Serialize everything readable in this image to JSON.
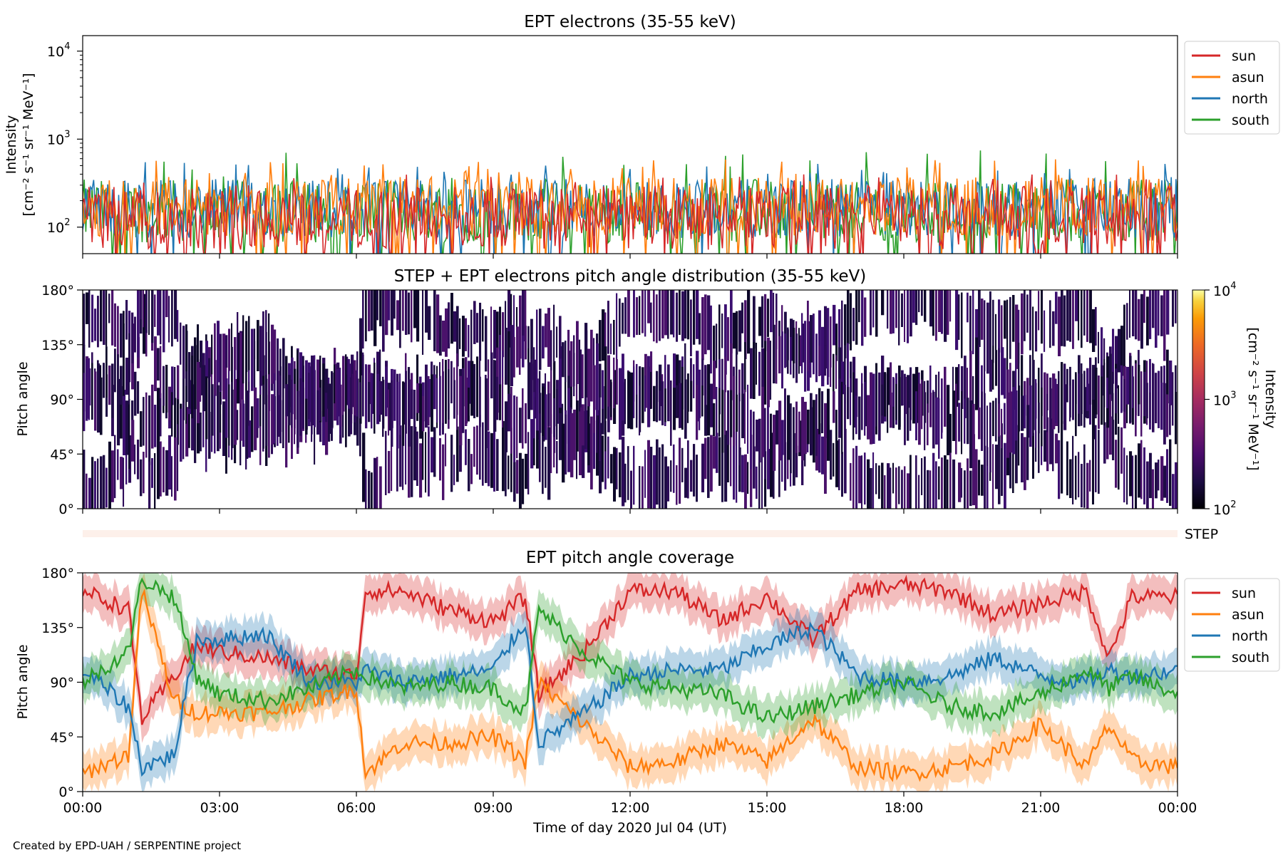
{
  "footer": "Created by EPD-UAH / SERPENTINE project",
  "legend_labels": [
    "sun",
    "asun",
    "north",
    "south"
  ],
  "colors": {
    "sun": "#d62728",
    "asun": "#ff7f0e",
    "north": "#1f77b4",
    "south": "#2ca02c"
  },
  "chart_data": [
    {
      "type": "line",
      "title": "EPT electrons (35-55 keV)",
      "ylabel_line1": "Intensity",
      "ylabel_line2": "[cm⁻² s⁻¹ sr⁻¹ MeV⁻¹]",
      "yscale": "log",
      "ylim": [
        50,
        15000
      ],
      "yticks": [
        {
          "value": 100,
          "label": "10",
          "exp": "2"
        },
        {
          "value": 1000,
          "label": "10",
          "exp": "3"
        },
        {
          "value": 10000,
          "label": "10",
          "exp": "4"
        }
      ],
      "xlim": [
        "2020-07-04 00:00",
        "2020-07-05 00:00"
      ],
      "legend_position": "outside-right-top",
      "series": [
        {
          "name": "sun",
          "baseline": 150,
          "spread": 0.3,
          "peak_range": [
            200,
            400
          ]
        },
        {
          "name": "asun",
          "baseline": 200,
          "spread": 0.28,
          "peak_range": [
            250,
            600
          ]
        },
        {
          "name": "north",
          "baseline": 190,
          "spread": 0.28,
          "peak_range": [
            250,
            550
          ]
        },
        {
          "name": "south",
          "baseline": 180,
          "spread": 0.3,
          "peak_range": [
            250,
            750
          ]
        }
      ]
    },
    {
      "type": "heatmap",
      "title": "STEP + EPT electrons pitch angle distribution (35-55 keV)",
      "ylabel": "Pitch angle",
      "ylim": [
        0,
        180
      ],
      "yticks": [
        "0°",
        "45°",
        "90°",
        "135°",
        "180°"
      ],
      "xlim": [
        "2020-07-04 00:00",
        "2020-07-05 00:00"
      ],
      "colorbar": {
        "label_line1": "Intensity",
        "label_line2": "[cm⁻² s⁻¹ sr⁻¹ MeV⁻¹]",
        "scale": "log",
        "range": [
          100,
          10000
        ],
        "ticks": [
          {
            "value": 100,
            "label": "10",
            "exp": "2"
          },
          {
            "value": 1000,
            "label": "10",
            "exp": "3"
          },
          {
            "value": 10000,
            "label": "10",
            "exp": "4"
          }
        ],
        "colormap": "inferno"
      },
      "typical_intensity": [
        100,
        250
      ]
    },
    {
      "type": "bar",
      "label": "STEP",
      "color": "#fdf0ea"
    },
    {
      "type": "line",
      "title": "EPT pitch angle coverage",
      "ylabel": "Pitch angle",
      "ylim": [
        0,
        180
      ],
      "yticks": [
        "0°",
        "45°",
        "90°",
        "135°",
        "180°"
      ],
      "xlim": [
        "2020-07-04 00:00",
        "2020-07-05 00:00"
      ],
      "xticks": [
        "00:00",
        "03:00",
        "06:00",
        "09:00",
        "12:00",
        "15:00",
        "18:00",
        "21:00",
        "00:00"
      ],
      "xlabel": "Time of day 2020 Jul 04 (UT)",
      "legend_position": "outside-right-top",
      "band_halfwidth_deg": 15,
      "x_hours": [
        0,
        1,
        1.3,
        2,
        2.5,
        3,
        4,
        5,
        6,
        6.2,
        7,
        8,
        9,
        9.7,
        10,
        11,
        12,
        13,
        14,
        15,
        16,
        17,
        18,
        19,
        20,
        21,
        22,
        22.5,
        23,
        24
      ],
      "series": [
        {
          "name": "sun",
          "values": [
            165,
            150,
            60,
            95,
            120,
            115,
            110,
            100,
            95,
            165,
            165,
            150,
            140,
            160,
            80,
            115,
            165,
            165,
            140,
            160,
            125,
            165,
            170,
            165,
            145,
            155,
            165,
            110,
            160,
            160
          ]
        },
        {
          "name": "asun",
          "values": [
            15,
            30,
            165,
            75,
            65,
            65,
            65,
            75,
            85,
            15,
            40,
            40,
            45,
            25,
            90,
            55,
            20,
            25,
            40,
            25,
            60,
            20,
            15,
            20,
            30,
            55,
            20,
            55,
            25,
            20
          ]
        },
        {
          "name": "north",
          "values": [
            100,
            70,
            20,
            30,
            125,
            125,
            130,
            90,
            90,
            100,
            90,
            95,
            100,
            140,
            40,
            65,
            95,
            100,
            100,
            120,
            135,
            95,
            90,
            95,
            110,
            95,
            90,
            100,
            95,
            100
          ]
        },
        {
          "name": "south",
          "values": [
            90,
            115,
            175,
            160,
            95,
            80,
            75,
            85,
            100,
            95,
            85,
            90,
            85,
            65,
            150,
            115,
            90,
            85,
            80,
            60,
            70,
            80,
            90,
            70,
            65,
            80,
            100,
            85,
            95,
            80
          ]
        }
      ]
    }
  ]
}
